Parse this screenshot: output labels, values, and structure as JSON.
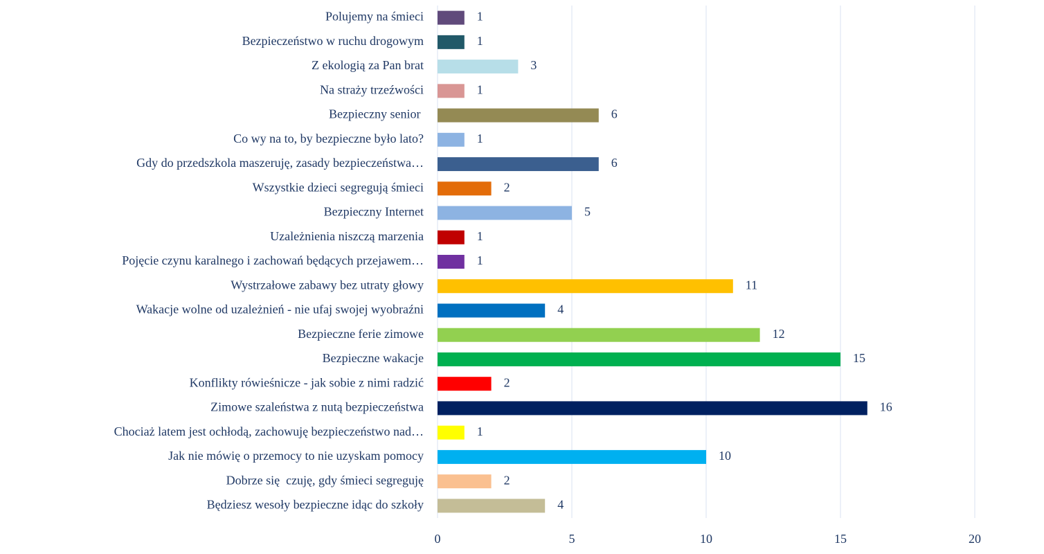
{
  "chart_data": {
    "type": "bar",
    "orientation": "horizontal",
    "categories": [
      "Polujemy na śmieci",
      "Bezpieczeństwo w ruchu drogowym",
      "Z ekologią za Pan brat",
      "Na straży trzeźwości",
      "Bezpieczny senior ",
      "Co wy na to, by bezpieczne było lato?",
      "Gdy do przedszkola maszeruję, zasady bezpieczeństwa…",
      "Wszystkie dzieci segregują śmieci",
      "Bezpieczny Internet",
      "Uzależnienia niszczą marzenia",
      "Pojęcie czynu karalnego i zachowań będących przejawem…",
      "Wystrzałowe zabawy bez utraty głowy",
      "Wakacje wolne od uzależnień - nie ufaj swojej wyobraźni",
      "Bezpieczne ferie zimowe",
      "Bezpieczne wakacje",
      "Konflikty rówieśnicze - jak sobie z nimi radzić",
      "Zimowe szaleństwa z nutą bezpieczeństwa",
      "Chociaż latem jest ochłodą, zachowuję bezpieczeństwo nad…",
      "Jak nie mówię o przemocy to nie uzyskam pomocy",
      "Dobrze się  czuję, gdy śmieci segreguję",
      "Będziesz wesoły bezpieczne idąc do szkoły"
    ],
    "values": [
      1,
      1,
      3,
      1,
      6,
      1,
      6,
      2,
      5,
      1,
      1,
      11,
      4,
      12,
      15,
      2,
      16,
      1,
      10,
      2,
      4
    ],
    "colors": [
      "#604a7b",
      "#215968",
      "#b7dee8",
      "#d99694",
      "#948a54",
      "#8db3e2",
      "#3b5f8f",
      "#e36c09",
      "#8db3e2",
      "#c00000",
      "#7030a0",
      "#ffc000",
      "#0070c0",
      "#92d050",
      "#00b050",
      "#ff0000",
      "#002060",
      "#ffff00",
      "#00b0f0",
      "#fac090",
      "#c4bd97"
    ],
    "xlim": [
      0,
      20
    ],
    "xticks": [
      0,
      5,
      10,
      15,
      20
    ],
    "grid": true
  }
}
